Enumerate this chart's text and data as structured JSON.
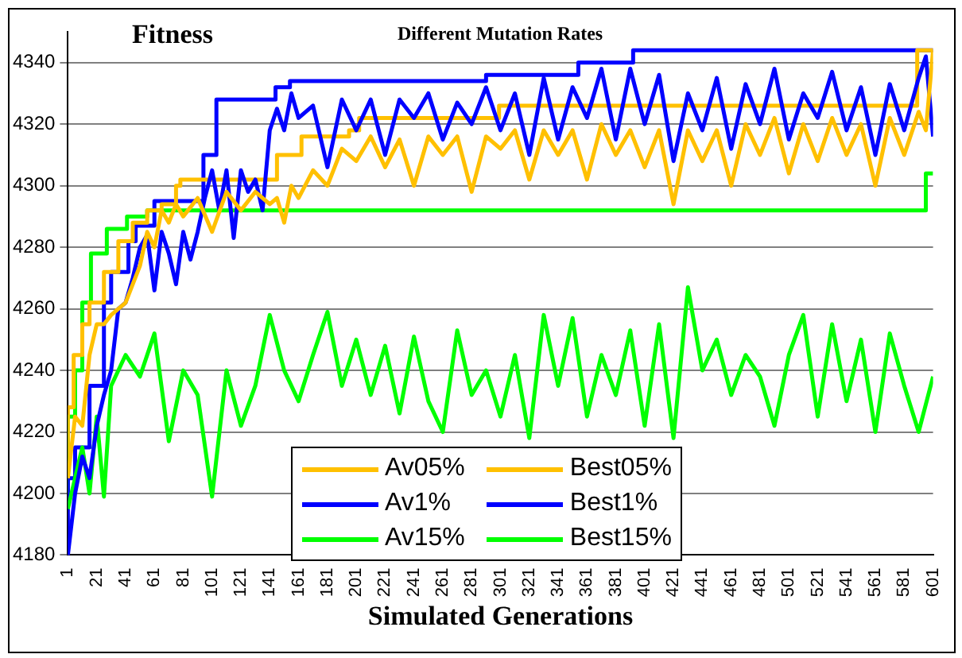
{
  "chart_data": {
    "type": "line",
    "title": "Different Mutation Rates",
    "ylabel": "Fitness",
    "xlabel": "Simulated Generations",
    "xlim": [
      1,
      601
    ],
    "xticks": [
      1,
      21,
      41,
      61,
      81,
      101,
      121,
      141,
      161,
      181,
      201,
      221,
      241,
      261,
      281,
      301,
      321,
      341,
      361,
      381,
      401,
      421,
      441,
      461,
      481,
      501,
      521,
      541,
      561,
      581,
      601
    ],
    "ylim": [
      4180,
      4350
    ],
    "yticks": [
      4180,
      4200,
      4220,
      4240,
      4260,
      4280,
      4300,
      4320,
      4340
    ],
    "grid": "y",
    "legend": "bottom",
    "marker": "none",
    "line_style": "solid",
    "series": [
      {
        "name": "Av05%",
        "type": "line",
        "color": "#ffc000",
        "x": [
          1,
          6,
          11,
          16,
          21,
          26,
          31,
          41,
          51,
          56,
          61,
          66,
          71,
          76,
          81,
          91,
          101,
          111,
          121,
          131,
          141,
          146,
          151,
          156,
          161,
          171,
          181,
          191,
          201,
          211,
          221,
          231,
          241,
          251,
          261,
          271,
          281,
          291,
          301,
          311,
          321,
          331,
          341,
          351,
          361,
          371,
          381,
          391,
          401,
          411,
          421,
          431,
          441,
          451,
          461,
          471,
          481,
          491,
          501,
          511,
          521,
          531,
          541,
          551,
          561,
          571,
          581,
          591,
          596,
          601
        ],
        "values": [
          4205,
          4225,
          4222,
          4245,
          4255,
          4255,
          4258,
          4262,
          4274,
          4285,
          4280,
          4292,
          4288,
          4294,
          4290,
          4296,
          4285,
          4298,
          4292,
          4298,
          4294,
          4296,
          4288,
          4300,
          4296,
          4305,
          4300,
          4312,
          4308,
          4316,
          4306,
          4315,
          4300,
          4316,
          4310,
          4316,
          4298,
          4316,
          4312,
          4318,
          4302,
          4318,
          4310,
          4318,
          4302,
          4320,
          4310,
          4318,
          4306,
          4318,
          4294,
          4318,
          4308,
          4318,
          4300,
          4320,
          4310,
          4322,
          4304,
          4320,
          4308,
          4322,
          4310,
          4320,
          4300,
          4322,
          4310,
          4324,
          4318,
          4344
        ]
      },
      {
        "name": "Av1%",
        "type": "line",
        "color": "#0000ff",
        "x": [
          1,
          6,
          11,
          16,
          21,
          26,
          31,
          36,
          41,
          46,
          51,
          56,
          61,
          66,
          71,
          76,
          81,
          86,
          91,
          96,
          101,
          106,
          111,
          116,
          121,
          126,
          131,
          136,
          141,
          146,
          151,
          156,
          161,
          171,
          181,
          191,
          201,
          211,
          221,
          231,
          241,
          251,
          261,
          271,
          281,
          291,
          301,
          311,
          321,
          331,
          341,
          351,
          361,
          371,
          381,
          391,
          401,
          411,
          421,
          431,
          441,
          451,
          461,
          471,
          481,
          491,
          501,
          511,
          521,
          531,
          541,
          551,
          561,
          571,
          581,
          591,
          596,
          601
        ],
        "values": [
          4180,
          4200,
          4212,
          4205,
          4222,
          4232,
          4240,
          4260,
          4262,
          4270,
          4280,
          4284,
          4266,
          4285,
          4278,
          4268,
          4285,
          4276,
          4285,
          4296,
          4305,
          4292,
          4305,
          4283,
          4305,
          4298,
          4302,
          4292,
          4318,
          4325,
          4318,
          4330,
          4322,
          4326,
          4306,
          4328,
          4318,
          4328,
          4310,
          4328,
          4322,
          4330,
          4315,
          4327,
          4320,
          4332,
          4318,
          4330,
          4310,
          4335,
          4315,
          4332,
          4322,
          4338,
          4315,
          4338,
          4320,
          4336,
          4308,
          4330,
          4318,
          4335,
          4312,
          4333,
          4320,
          4338,
          4315,
          4330,
          4322,
          4337,
          4318,
          4332,
          4310,
          4333,
          4318,
          4335,
          4342,
          4316
        ]
      },
      {
        "name": "Av15%",
        "type": "line",
        "color": "#00ff00",
        "x": [
          1,
          6,
          11,
          16,
          21,
          26,
          31,
          41,
          51,
          61,
          71,
          81,
          91,
          101,
          111,
          121,
          131,
          141,
          151,
          161,
          171,
          181,
          191,
          201,
          211,
          221,
          231,
          241,
          251,
          261,
          271,
          281,
          291,
          301,
          311,
          321,
          331,
          341,
          351,
          361,
          371,
          381,
          391,
          401,
          411,
          421,
          431,
          441,
          451,
          461,
          471,
          481,
          491,
          501,
          511,
          521,
          531,
          541,
          551,
          561,
          571,
          581,
          591,
          601
        ],
        "values": [
          4195,
          4205,
          4215,
          4200,
          4225,
          4199,
          4235,
          4245,
          4238,
          4252,
          4217,
          4240,
          4232,
          4199,
          4240,
          4222,
          4235,
          4258,
          4240,
          4230,
          4245,
          4259,
          4235,
          4250,
          4232,
          4248,
          4226,
          4251,
          4230,
          4220,
          4253,
          4232,
          4240,
          4225,
          4245,
          4218,
          4258,
          4235,
          4257,
          4225,
          4245,
          4232,
          4253,
          4222,
          4255,
          4218,
          4267,
          4240,
          4250,
          4232,
          4245,
          4238,
          4222,
          4245,
          4258,
          4225,
          4255,
          4230,
          4250,
          4220,
          4252,
          4235,
          4220,
          4238
        ]
      },
      {
        "name": "Best05%",
        "type": "step",
        "color": "#ffc000",
        "x": [
          1,
          5,
          11,
          16,
          26,
          36,
          46,
          56,
          66,
          76,
          79,
          146,
          163,
          196,
          203,
          300,
          590,
          601
        ],
        "values": [
          4205,
          4228,
          4245,
          4255,
          4262,
          4272,
          4282,
          4288,
          4292,
          4294,
          4300,
          4302,
          4310,
          4316,
          4318,
          4322,
          4326,
          4344
        ]
      },
      {
        "name": "Best1%",
        "type": "step",
        "color": "#0000ff",
        "x": [
          1,
          6,
          16,
          26,
          31,
          43,
          48,
          61,
          95,
          104,
          145,
          155,
          291,
          355,
          393,
          497,
          601
        ],
        "values": [
          4180,
          4205,
          4215,
          4235,
          4262,
          4272,
          4282,
          4287,
          4295,
          4310,
          4328,
          4332,
          4334,
          4336,
          4340,
          4344,
          4344
        ]
      },
      {
        "name": "Best15%",
        "type": "step",
        "color": "#00ff00",
        "x": [
          1,
          6,
          11,
          17,
          28,
          42,
          56,
          162,
          596,
          601
        ],
        "values": [
          4200,
          4225,
          4240,
          4262,
          4278,
          4286,
          4290,
          4292,
          4292,
          4304
        ]
      }
    ]
  }
}
